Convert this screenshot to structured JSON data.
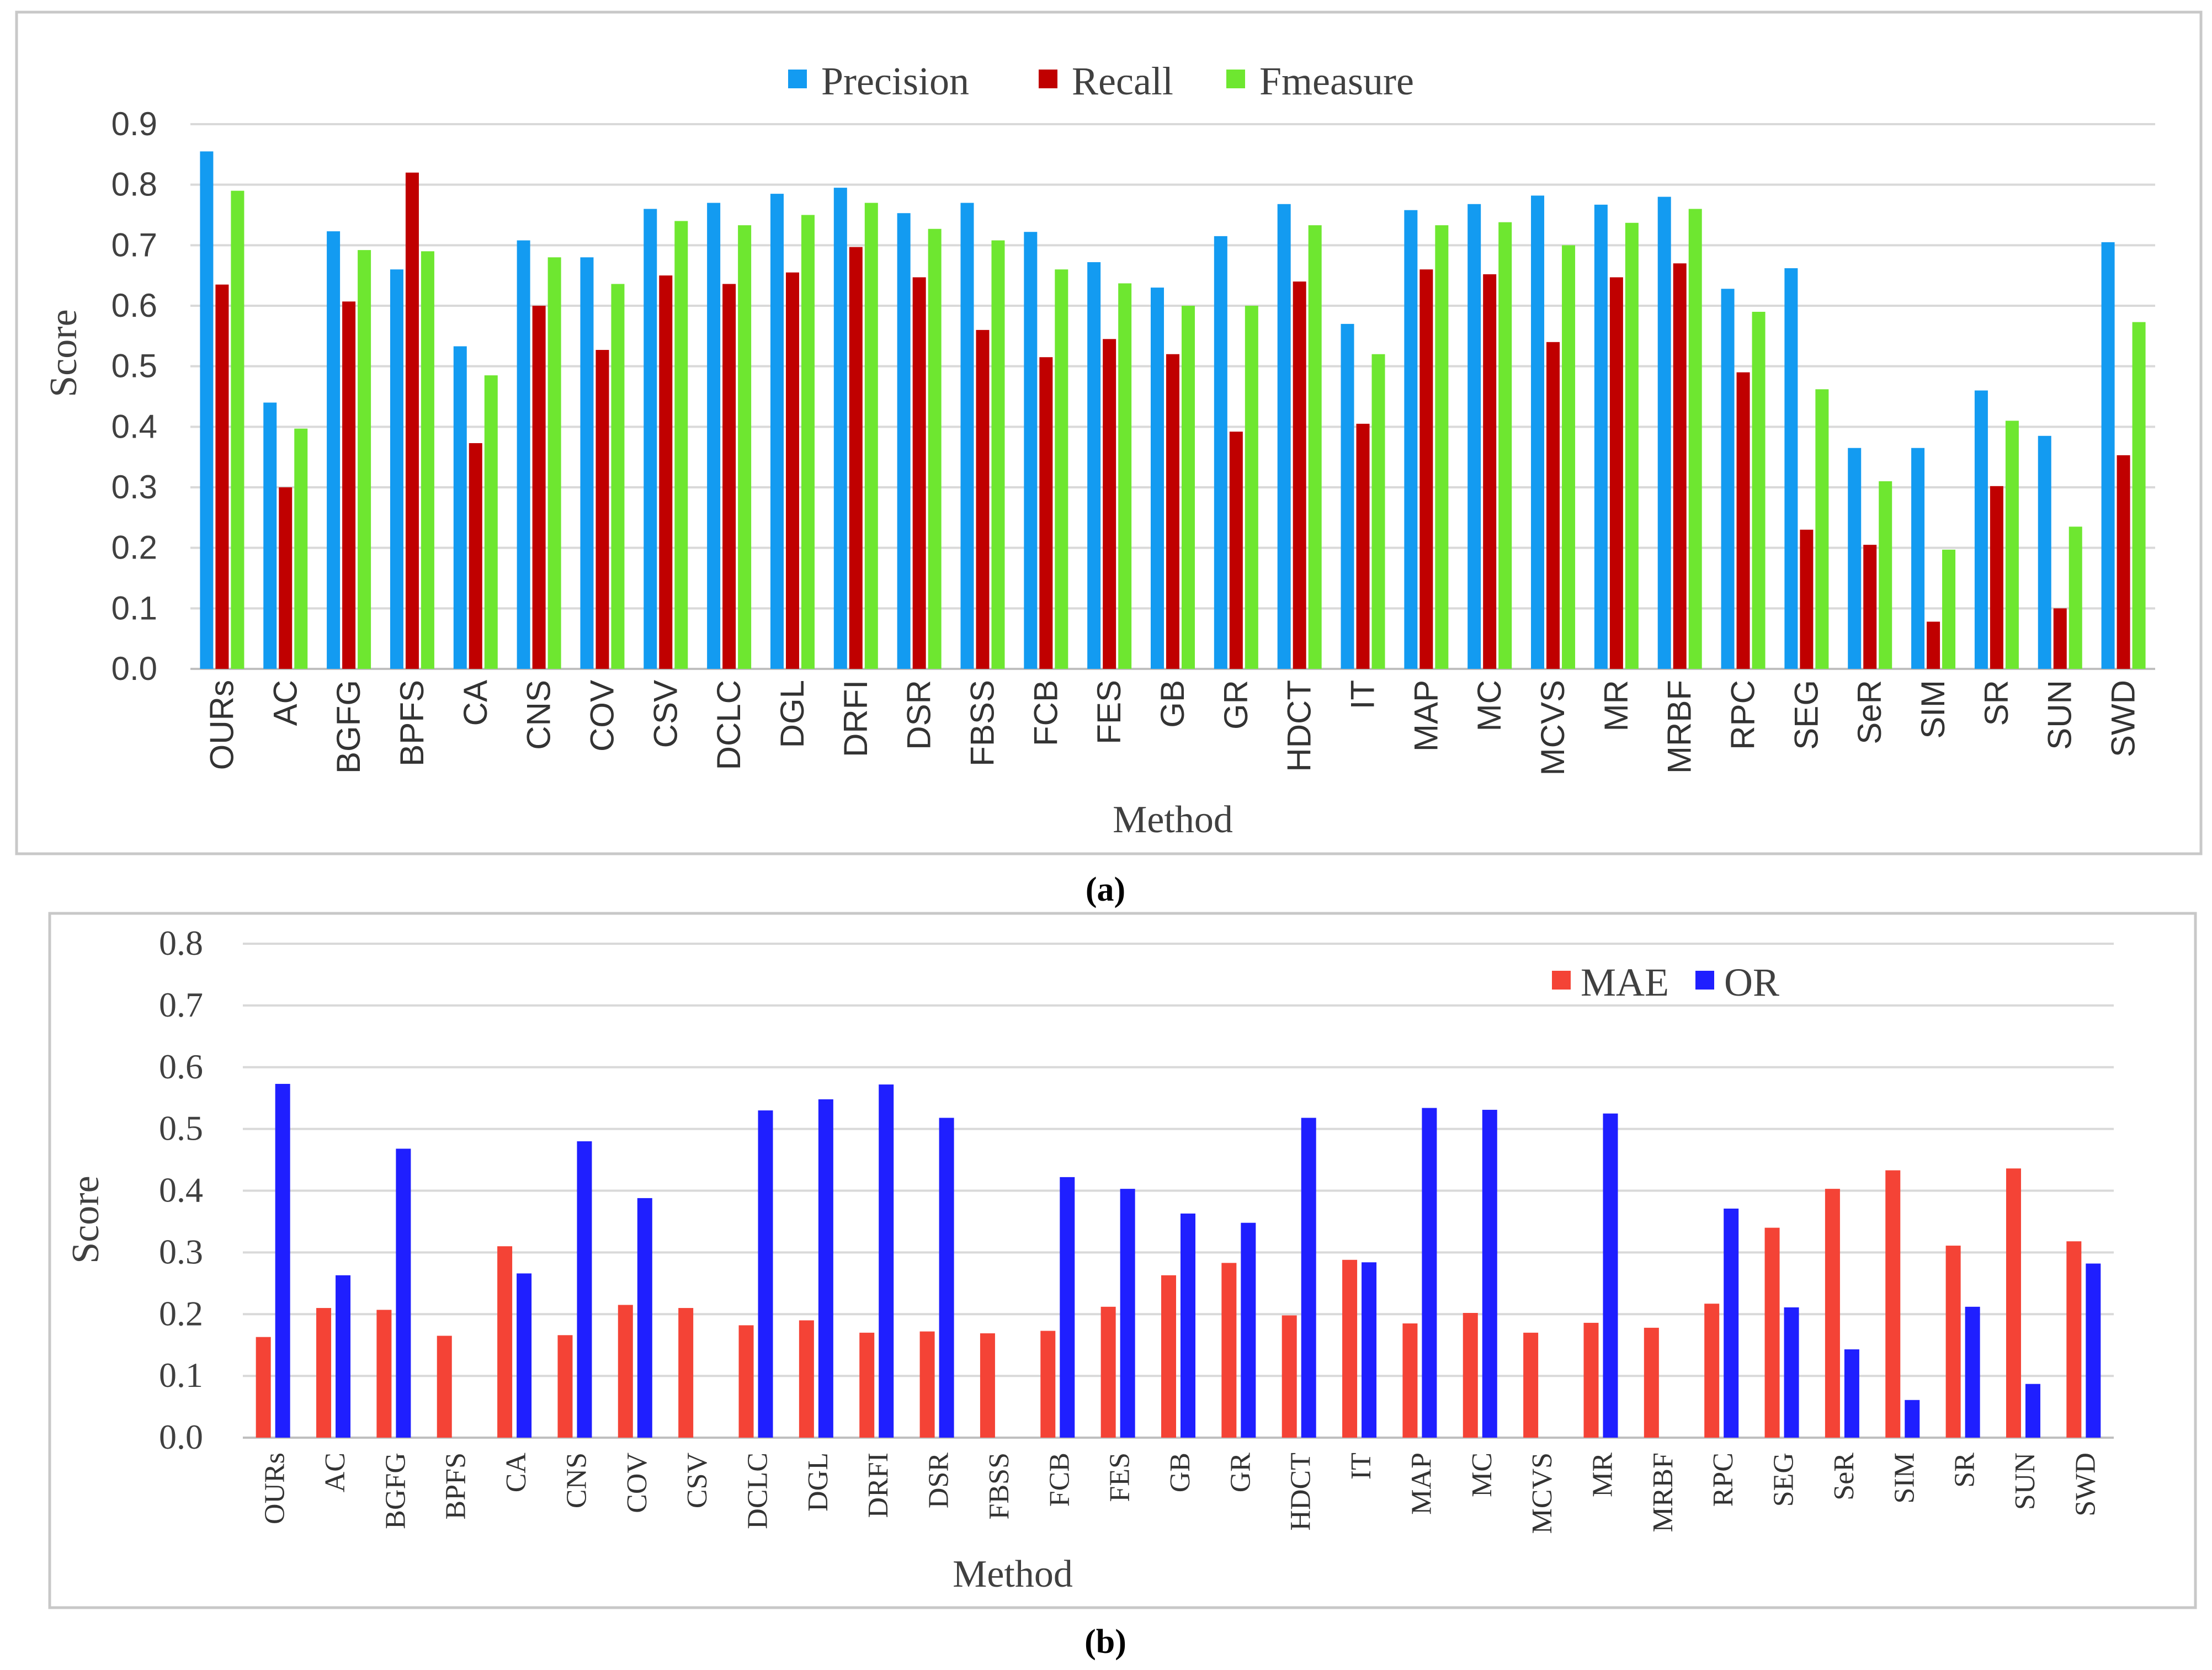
{
  "chart_data": [
    {
      "type": "bar",
      "panel_label": "a",
      "title": "",
      "xlabel": "Method",
      "ylabel": "Score",
      "ylim": [
        0,
        0.9
      ],
      "yticks": [
        "0.0",
        "0.1",
        "0.2",
        "0.3",
        "0.4",
        "0.5",
        "0.6",
        "0.7",
        "0.8",
        "0.9"
      ],
      "grid": true,
      "legend_position": "top-center",
      "categories": [
        "OURs",
        "AC",
        "BGFG",
        "BPFS",
        "CA",
        "CNS",
        "COV",
        "CSV",
        "DCLC",
        "DGL",
        "DRFI",
        "DSR",
        "FBSS",
        "FCB",
        "FES",
        "GB",
        "GR",
        "HDCT",
        "IT",
        "MAP",
        "MC",
        "MCVS",
        "MR",
        "MRBF",
        "RPC",
        "SEG",
        "SeR",
        "SIM",
        "SR",
        "SUN",
        "SWD"
      ],
      "series": [
        {
          "name": "Precision",
          "color": "#139bf1",
          "values": [
            0.855,
            0.44,
            0.723,
            0.66,
            0.533,
            0.708,
            0.68,
            0.76,
            0.77,
            0.785,
            0.795,
            0.753,
            0.77,
            0.722,
            0.672,
            0.63,
            0.715,
            0.768,
            0.57,
            0.758,
            0.768,
            0.782,
            0.767,
            0.78,
            0.628,
            0.662,
            0.365,
            0.365,
            0.46,
            0.385,
            0.705
          ]
        },
        {
          "name": "Recall",
          "color": "#c00000",
          "values": [
            0.635,
            0.3,
            0.607,
            0.82,
            0.373,
            0.6,
            0.527,
            0.65,
            0.636,
            0.655,
            0.697,
            0.647,
            0.56,
            0.515,
            0.545,
            0.52,
            0.392,
            0.64,
            0.405,
            0.66,
            0.652,
            0.54,
            0.647,
            0.67,
            0.49,
            0.23,
            0.205,
            0.078,
            0.302,
            0.1,
            0.353
          ]
        },
        {
          "name": "Fmeasure",
          "color": "#6ee730",
          "values": [
            0.79,
            0.397,
            0.692,
            0.69,
            0.485,
            0.68,
            0.636,
            0.74,
            0.733,
            0.75,
            0.77,
            0.727,
            0.708,
            0.66,
            0.637,
            0.6,
            0.6,
            0.733,
            0.52,
            0.733,
            0.738,
            0.7,
            0.737,
            0.76,
            0.59,
            0.462,
            0.31,
            0.197,
            0.41,
            0.235,
            0.573
          ]
        }
      ],
      "caption": "(a)"
    },
    {
      "type": "bar",
      "panel_label": "b",
      "title": "",
      "xlabel": "Method",
      "ylabel": "Score",
      "ylim": [
        0,
        0.8
      ],
      "yticks": [
        "0.0",
        "0.1",
        "0.2",
        "0.3",
        "0.4",
        "0.5",
        "0.6",
        "0.7",
        "0.8"
      ],
      "grid": true,
      "legend_position": "top-right",
      "categories": [
        "OURs",
        "AC",
        "BGFG",
        "BPFS",
        "CA",
        "CNS",
        "COV",
        "CSV",
        "DCLC",
        "DGL",
        "DRFI",
        "DSR",
        "FBSS",
        "FCB",
        "FES",
        "GB",
        "GR",
        "HDCT",
        "IT",
        "MAP",
        "MC",
        "MCVS",
        "MR",
        "MRBF",
        "RPC",
        "SEG",
        "SeR",
        "SIM",
        "SR",
        "SUN",
        "SWD"
      ],
      "series": [
        {
          "name": "MAE",
          "color": "#f44336",
          "values": [
            0.163,
            0.21,
            0.207,
            0.165,
            0.31,
            0.166,
            0.215,
            0.21,
            0.182,
            0.19,
            0.17,
            0.172,
            0.169,
            0.173,
            0.212,
            0.263,
            0.283,
            0.198,
            0.288,
            0.185,
            0.202,
            0.17,
            0.186,
            0.178,
            0.217,
            0.34,
            0.403,
            0.433,
            0.311,
            0.436,
            0.318
          ]
        },
        {
          "name": "OR",
          "color": "#1f1fff",
          "values": [
            0.573,
            0.263,
            0.468,
            0,
            0.266,
            0.48,
            0.388,
            0,
            0.53,
            0.548,
            0.572,
            0.518,
            0,
            0.422,
            0.403,
            0.363,
            0.348,
            0.518,
            0.284,
            0.534,
            0.531,
            0,
            0.525,
            0,
            0.371,
            0.211,
            0.143,
            0.061,
            0.212,
            0.087,
            0.282
          ]
        }
      ],
      "caption": "(b)"
    }
  ]
}
